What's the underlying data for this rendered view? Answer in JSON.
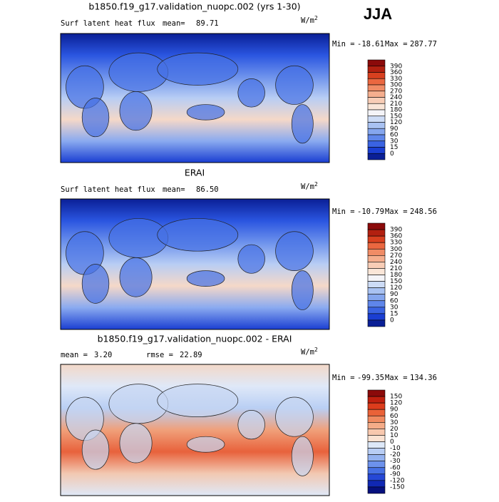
{
  "season": "JJA",
  "panels": [
    {
      "title": "b1850.f19_g17.validation_nuopc.002 (yrs 1-30)",
      "left_label": "Surf latent heat flux",
      "center_label": "mean=",
      "center_value": "89.71",
      "units": {
        "base": "W/m",
        "exp": "2"
      },
      "min_label": "Min =",
      "min": "-18.61",
      "max_label": "Max =",
      "max": "287.77",
      "colorbar": {
        "levels": [
          390,
          360,
          330,
          300,
          270,
          240,
          210,
          180,
          150,
          120,
          90,
          60,
          30,
          15,
          0
        ],
        "colors": [
          "#8b0a0a",
          "#b22010",
          "#d8401f",
          "#ea6740",
          "#f08c66",
          "#f5ae8e",
          "#f8cdb6",
          "#fae6d8",
          "#f4f4f8",
          "#cddcf6",
          "#a9c2f2",
          "#85a6ee",
          "#5f86ea",
          "#3a63e2",
          "#1a3ed2",
          "#0a1f96"
        ]
      }
    },
    {
      "title": "ERAI",
      "left_label": "Surf latent heat flux",
      "center_label": "mean=",
      "center_value": "86.50",
      "units": {
        "base": "W/m",
        "exp": "2"
      },
      "min_label": "Min =",
      "min": "-10.79",
      "max_label": "Max =",
      "max": "248.56",
      "colorbar": {
        "levels": [
          390,
          360,
          330,
          300,
          270,
          240,
          210,
          180,
          150,
          120,
          90,
          60,
          30,
          15,
          0
        ],
        "colors": [
          "#8b0a0a",
          "#b22010",
          "#d8401f",
          "#ea6740",
          "#f08c66",
          "#f5ae8e",
          "#f8cdb6",
          "#fae6d8",
          "#f4f4f8",
          "#cddcf6",
          "#a9c2f2",
          "#85a6ee",
          "#5f86ea",
          "#3a63e2",
          "#1a3ed2",
          "#0a1f96"
        ]
      }
    },
    {
      "title": "b1850.f19_g17.validation_nuopc.002 - ERAI",
      "left_label": "mean =",
      "left_value": "3.20",
      "center_label": "rmse =",
      "center_value": "22.89",
      "units": {
        "base": "W/m",
        "exp": "2"
      },
      "min_label": "Min =",
      "min": "-99.35",
      "max_label": "Max =",
      "max": "134.36",
      "colorbar": {
        "levels": [
          150,
          120,
          90,
          60,
          30,
          20,
          10,
          0,
          -10,
          -20,
          -30,
          -60,
          -90,
          -120,
          -150
        ],
        "colors": [
          "#8b0a0a",
          "#c0200f",
          "#dc3c1c",
          "#ea6238",
          "#f08a60",
          "#f5ac88",
          "#f8c8ae",
          "#fbe2d2",
          "#dde8f8",
          "#b8cdf4",
          "#94b2f0",
          "#6d92ec",
          "#4670e4",
          "#2548d6",
          "#1028b4",
          "#06107e"
        ]
      }
    }
  ]
}
